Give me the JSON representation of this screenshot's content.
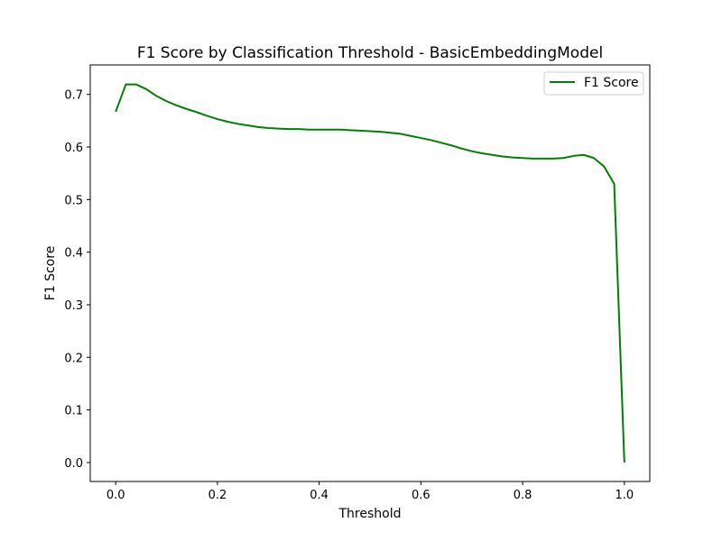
{
  "chart_data": {
    "type": "line",
    "title": "F1 Score by Classification Threshold - BasicEmbeddingModel",
    "xlabel": "Threshold",
    "ylabel": "F1 Score",
    "xlim": [
      -0.05,
      1.05
    ],
    "ylim": [
      -0.036,
      0.756
    ],
    "xticks": [
      0.0,
      0.2,
      0.4,
      0.6,
      0.8,
      1.0
    ],
    "xtick_labels": [
      "0.0",
      "0.2",
      "0.4",
      "0.6",
      "0.8",
      "1.0"
    ],
    "yticks": [
      0.0,
      0.1,
      0.2,
      0.3,
      0.4,
      0.5,
      0.6,
      0.7
    ],
    "ytick_labels": [
      "0.0",
      "0.1",
      "0.2",
      "0.3",
      "0.4",
      "0.5",
      "0.6",
      "0.7"
    ],
    "grid": false,
    "legend": "top-right",
    "series": [
      {
        "name": "F1 Score",
        "color": "#008000",
        "x": [
          0.0,
          0.02,
          0.04,
          0.06,
          0.08,
          0.1,
          0.12,
          0.14,
          0.16,
          0.18,
          0.2,
          0.22,
          0.24,
          0.26,
          0.28,
          0.3,
          0.32,
          0.34,
          0.36,
          0.38,
          0.4,
          0.42,
          0.44,
          0.46,
          0.48,
          0.5,
          0.52,
          0.54,
          0.56,
          0.58,
          0.6,
          0.62,
          0.64,
          0.66,
          0.68,
          0.7,
          0.72,
          0.74,
          0.76,
          0.78,
          0.8,
          0.82,
          0.84,
          0.86,
          0.88,
          0.9,
          0.92,
          0.94,
          0.96,
          0.98,
          1.0
        ],
        "y": [
          0.667,
          0.719,
          0.719,
          0.71,
          0.697,
          0.687,
          0.679,
          0.672,
          0.666,
          0.659,
          0.653,
          0.648,
          0.644,
          0.641,
          0.638,
          0.636,
          0.635,
          0.634,
          0.634,
          0.633,
          0.633,
          0.633,
          0.633,
          0.632,
          0.631,
          0.63,
          0.629,
          0.627,
          0.625,
          0.621,
          0.617,
          0.613,
          0.608,
          0.603,
          0.597,
          0.592,
          0.588,
          0.585,
          0.582,
          0.58,
          0.579,
          0.578,
          0.578,
          0.578,
          0.579,
          0.583,
          0.585,
          0.579,
          0.563,
          0.53,
          0.0
        ]
      }
    ]
  }
}
